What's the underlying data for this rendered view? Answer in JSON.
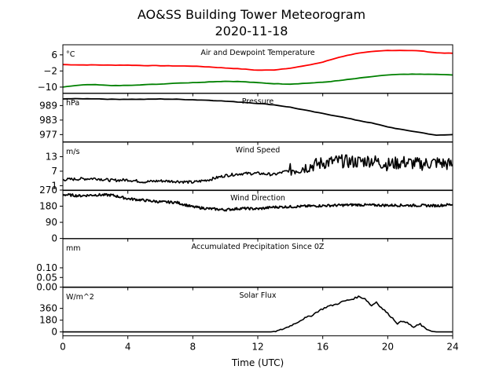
{
  "figure": {
    "title_line1": "AO&SS Building Tower Meteorogram",
    "title_line2": "2020-11-18",
    "xlabel": "Time (UTC)",
    "x_ticks": [
      0,
      4,
      8,
      12,
      16,
      20,
      24
    ],
    "x_tick_labels": [
      "0",
      "4",
      "8",
      "12",
      "16",
      "20",
      "24"
    ],
    "xlim": [
      0,
      24
    ]
  },
  "chart_data": [
    {
      "type": "line",
      "title": "Air and Dewpoint Temperature",
      "unit": "°C",
      "ylim": [
        -13,
        11
      ],
      "yticks": [
        6,
        -2,
        -10
      ],
      "ytick_labels": [
        "6",
        "−2",
        "−10"
      ],
      "series": [
        {
          "color": "#ff0000",
          "x": [
            0,
            1,
            2,
            3,
            4,
            5,
            6,
            7,
            8,
            9,
            10,
            11,
            12,
            13,
            14,
            15,
            16,
            17,
            18,
            19,
            20,
            21,
            22,
            23,
            24
          ],
          "values": [
            1.2,
            1.0,
            1.0,
            0.9,
            0.9,
            0.7,
            0.6,
            0.5,
            0.4,
            0.0,
            -0.5,
            -1.0,
            -1.6,
            -1.5,
            -0.6,
            0.7,
            2.4,
            4.8,
            6.6,
            7.6,
            8.2,
            8.2,
            8.0,
            7.0,
            6.8
          ]
        },
        {
          "color": "#008000",
          "x": [
            0,
            1,
            2,
            3,
            4,
            5,
            6,
            7,
            8,
            9,
            10,
            11,
            12,
            13,
            14,
            15,
            16,
            17,
            18,
            19,
            20,
            21,
            22,
            23,
            24
          ],
          "values": [
            -10.0,
            -9.0,
            -8.7,
            -9.3,
            -9.1,
            -8.8,
            -8.5,
            -8.0,
            -7.8,
            -7.4,
            -7.1,
            -7.3,
            -7.8,
            -8.3,
            -8.5,
            -8.1,
            -7.6,
            -6.8,
            -5.8,
            -4.8,
            -4.0,
            -3.6,
            -3.6,
            -3.7,
            -4.0
          ]
        }
      ]
    },
    {
      "type": "line",
      "title": "Pressure",
      "unit": "hPa",
      "ylim": [
        974,
        994
      ],
      "yticks": [
        989,
        983,
        977
      ],
      "ytick_labels": [
        "989",
        "983",
        "977"
      ],
      "series": [
        {
          "color": "#000000",
          "x": [
            0,
            1,
            2,
            3,
            4,
            5,
            6,
            7,
            8,
            9,
            10,
            11,
            12,
            13,
            14,
            15,
            16,
            17,
            18,
            19,
            20,
            21,
            22,
            23,
            24
          ],
          "values": [
            991.8,
            991.8,
            991.8,
            991.6,
            991.6,
            991.6,
            991.7,
            991.6,
            991.4,
            991.2,
            990.8,
            990.4,
            989.9,
            989.3,
            988.3,
            987.0,
            985.7,
            984.5,
            983.1,
            981.8,
            980.2,
            978.9,
            977.9,
            976.7,
            977.0
          ]
        }
      ]
    },
    {
      "type": "line",
      "title": "Wind Speed",
      "unit": "m/s",
      "ylim": [
        -1,
        19
      ],
      "yticks": [
        13,
        7,
        1
      ],
      "ytick_labels": [
        "13",
        "7",
        "1"
      ],
      "series": [
        {
          "color": "#000000",
          "x": [
            0,
            1,
            2,
            3,
            4,
            5,
            6,
            7,
            8,
            9,
            10,
            11,
            12,
            13,
            14,
            15,
            16,
            17,
            18,
            19,
            20,
            21,
            22,
            23,
            24
          ],
          "values": [
            3.5,
            3.8,
            4.0,
            3.2,
            3.4,
            2.6,
            3.0,
            2.8,
            2.4,
            3.5,
            5.2,
            6.0,
            6.1,
            5.6,
            7.4,
            8.8,
            10.4,
            11.2,
            10.8,
            11.5,
            9.8,
            10.7,
            9.9,
            10.6,
            9.6
          ]
        }
      ]
    },
    {
      "type": "line",
      "title": "Wind Direction",
      "unit": "",
      "ylim": [
        0,
        270
      ],
      "yticks": [
        270,
        180,
        90,
        0
      ],
      "ytick_labels": [
        "270",
        "180",
        "90",
        "0"
      ],
      "series": [
        {
          "color": "#000000",
          "x": [
            0,
            1,
            2,
            3,
            4,
            5,
            6,
            7,
            8,
            9,
            10,
            11,
            12,
            13,
            14,
            15,
            16,
            17,
            18,
            19,
            20,
            21,
            22,
            23,
            24
          ],
          "values": [
            245,
            238,
            243,
            242,
            222,
            213,
            204,
            201,
            176,
            166,
            160,
            168,
            165,
            175,
            177,
            180,
            183,
            185,
            188,
            186,
            185,
            185,
            184,
            183,
            190
          ]
        }
      ]
    },
    {
      "type": "line",
      "title": "Accumulated Precipitation Since 0Z",
      "unit": "mm",
      "ylim": [
        0,
        0.25
      ],
      "yticks": [
        0.1,
        0.05,
        0.0
      ],
      "ytick_labels": [
        "0.10",
        "0.05",
        "0.00"
      ],
      "series": [
        {
          "color": "#000000",
          "x": [
            0,
            24
          ],
          "values": [
            0,
            0
          ]
        }
      ]
    },
    {
      "type": "line",
      "title": "Solar Flux",
      "unit": "W/m^2",
      "ylim": [
        -60,
        680
      ],
      "yticks": [
        360,
        180,
        0
      ],
      "ytick_labels": [
        "360",
        "180",
        "0"
      ],
      "series": [
        {
          "color": "#000000",
          "x": [
            0,
            12.8,
            13.3,
            13.8,
            14.3,
            14.8,
            15.3,
            15.8,
            16.3,
            16.8,
            17.3,
            17.8,
            18.2,
            18.6,
            19.0,
            19.3,
            19.6,
            19.8,
            20.0,
            20.3,
            20.6,
            21.0,
            21.3,
            21.6,
            22.0,
            22.3,
            22.7,
            23.0,
            24.0
          ],
          "values": [
            0,
            0,
            20,
            70,
            130,
            200,
            250,
            330,
            390,
            420,
            470,
            500,
            540,
            510,
            400,
            460,
            370,
            330,
            280,
            210,
            130,
            170,
            120,
            70,
            120,
            50,
            10,
            0,
            0
          ]
        }
      ]
    }
  ]
}
